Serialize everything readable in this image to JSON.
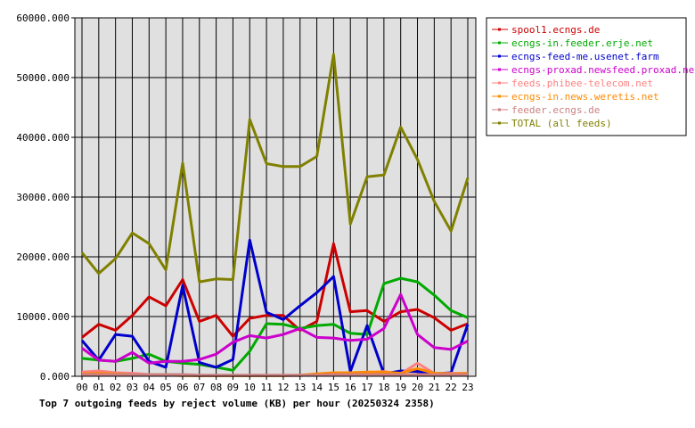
{
  "chart_data": {
    "type": "line",
    "title": "Top 7 outgoing feeds by reject volume (KB) per hour (20250324 2358)",
    "xlabel": "",
    "ylabel": "",
    "ylim": [
      0,
      60000
    ],
    "y_ticks": [
      "0.000",
      "10000.000",
      "20000.000",
      "30000.000",
      "40000.000",
      "50000.000",
      "60000.000"
    ],
    "categories": [
      "00",
      "01",
      "02",
      "03",
      "04",
      "05",
      "06",
      "07",
      "08",
      "09",
      "10",
      "11",
      "12",
      "13",
      "14",
      "15",
      "16",
      "17",
      "18",
      "19",
      "20",
      "21",
      "22",
      "23"
    ],
    "grid": true,
    "legend_position": "right",
    "series": [
      {
        "name": "spool1.ecngs.de",
        "color": "#cc0000",
        "values": [
          6500,
          8700,
          7700,
          10200,
          13300,
          11800,
          16200,
          9200,
          10200,
          6700,
          9700,
          10200,
          10200,
          7700,
          9200,
          22200,
          10800,
          11000,
          9200,
          10800,
          11200,
          9800,
          7700,
          8800
        ]
      },
      {
        "name": "ecngs-in.feeder.erje.net",
        "color": "#00aa00",
        "values": [
          3000,
          2700,
          2500,
          3000,
          3700,
          2500,
          2200,
          2000,
          1500,
          1000,
          4200,
          8800,
          8700,
          8000,
          8500,
          8700,
          7200,
          7000,
          15500,
          16400,
          15800,
          13600,
          11000,
          9800
        ]
      },
      {
        "name": "ecngs-feed-me.usenet.farm",
        "color": "#0000cc",
        "values": [
          6000,
          2700,
          7000,
          6700,
          2500,
          1500,
          15200,
          2300,
          1500,
          2800,
          22800,
          10700,
          9500,
          11800,
          14000,
          16700,
          800,
          8500,
          400,
          900,
          800,
          400,
          600,
          8700
        ]
      },
      {
        "name": "ecngs-proxad.newsfeed.proxad.net",
        "color": "#cc00cc",
        "values": [
          4700,
          2700,
          2500,
          4000,
          2200,
          2500,
          2500,
          2800,
          3700,
          5700,
          6800,
          6400,
          7000,
          8000,
          6500,
          6400,
          6000,
          6200,
          8000,
          13700,
          7000,
          4800,
          4500,
          5900
        ]
      },
      {
        "name": "feeds.phibee-telecom.net",
        "color": "#ff8080",
        "values": [
          700,
          900,
          600,
          500,
          300,
          200,
          200,
          100,
          100,
          100,
          100,
          100,
          100,
          100,
          300,
          500,
          500,
          600,
          800,
          400,
          2200,
          500,
          500,
          500
        ]
      },
      {
        "name": "ecngs-in.news.weretis.net",
        "color": "#ff8800",
        "values": [
          400,
          500,
          400,
          300,
          200,
          200,
          100,
          100,
          100,
          100,
          100,
          100,
          100,
          200,
          400,
          600,
          600,
          700,
          700,
          500,
          1300,
          500,
          400,
          500
        ]
      },
      {
        "name": "feeder.ecngs.de",
        "color": "#cc8080",
        "values": [
          300,
          300,
          300,
          300,
          300,
          300,
          300,
          200,
          200,
          200,
          200,
          200,
          200,
          200,
          200,
          300,
          300,
          300,
          300,
          300,
          300,
          300,
          300,
          300
        ]
      },
      {
        "name": "TOTAL (all feeds)",
        "color": "#808000",
        "values": [
          20700,
          17200,
          19700,
          24000,
          22200,
          17800,
          35700,
          15800,
          16300,
          16200,
          43000,
          35600,
          35100,
          35100,
          36800,
          53900,
          25500,
          33400,
          33700,
          41700,
          36300,
          29300,
          24300,
          33200
        ]
      }
    ]
  }
}
